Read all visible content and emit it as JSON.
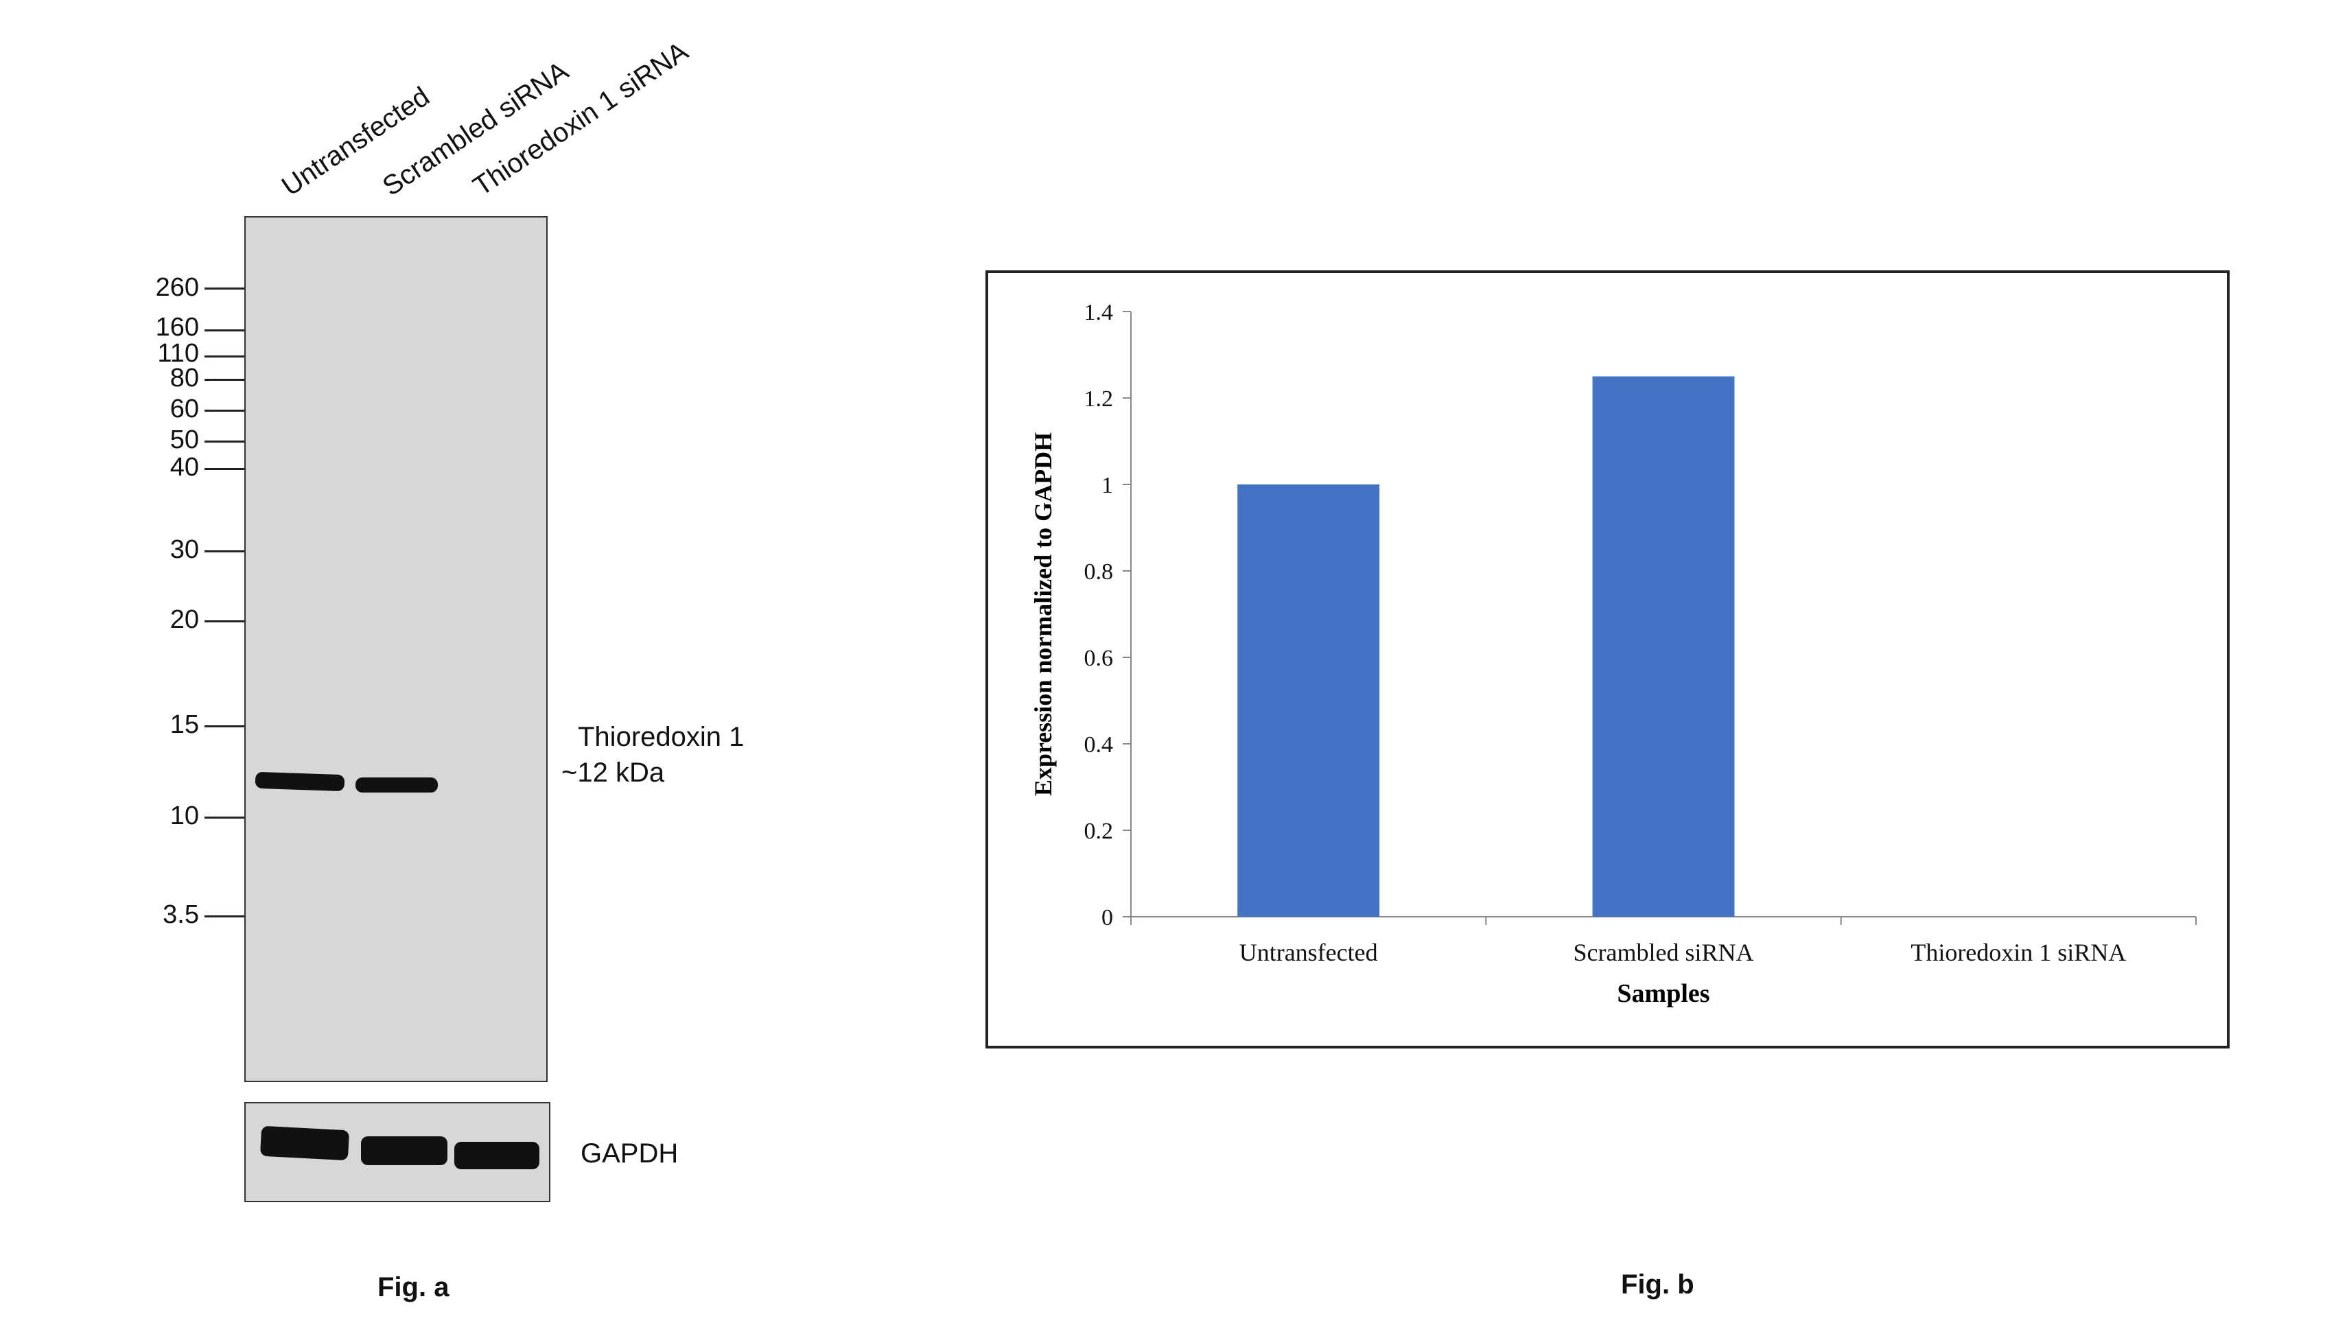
{
  "fig_a": {
    "lanes": [
      "Untransfected",
      "Scrambled siRNA",
      "Thioredoxin 1 siRNA"
    ],
    "markers": [
      "260",
      "160",
      "110",
      "80",
      "60",
      "50",
      "40",
      "30",
      "20",
      "15",
      "10",
      "3.5"
    ],
    "target_label_line1": "Thioredoxin 1",
    "target_label_line2": "~12 kDa",
    "loading_control_label": "GAPDH",
    "caption": "Fig. a"
  },
  "fig_b": {
    "caption": "Fig. b"
  },
  "chart_data": {
    "type": "bar",
    "categories": [
      "Untransfected",
      "Scrambled siRNA",
      "Thioredoxin 1 siRNA"
    ],
    "values": [
      1.0,
      1.25,
      0.0
    ],
    "title": "",
    "xlabel": "Samples",
    "ylabel": "Expression normalized to GAPDH",
    "ylim": [
      0,
      1.4
    ],
    "yticks": [
      "0",
      "0.2",
      "0.4",
      "0.6",
      "0.8",
      "1",
      "1.2",
      "1.4"
    ],
    "bar_color": "#4472C4",
    "grid": false,
    "legend": "none"
  }
}
